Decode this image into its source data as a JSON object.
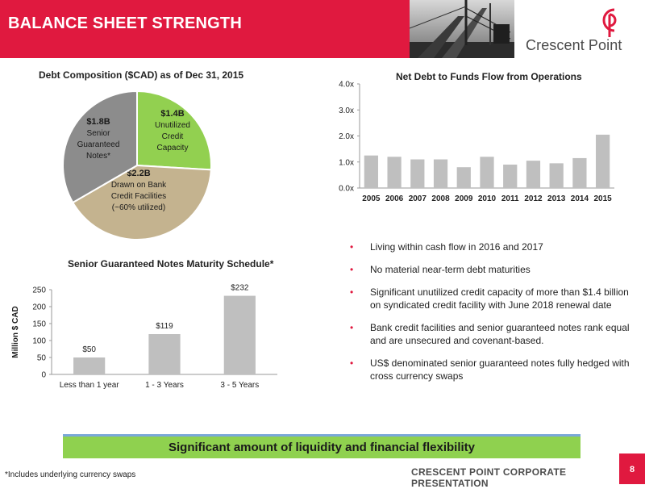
{
  "header": {
    "title": "BALANCE SHEET STRENGTH",
    "brand": "Crescent Point",
    "colors": {
      "accent": "#e0193f"
    }
  },
  "debt_pie": {
    "title": "Debt Composition ($CAD) as of Dec 31, 2015",
    "slices": [
      {
        "amount": "$1.4B",
        "label": [
          "Unutilized",
          "Credit",
          "Capacity"
        ],
        "value": 1.4,
        "color": "#92d050"
      },
      {
        "amount": "$2.2B",
        "label": [
          "Drawn on Bank",
          "Credit Facilities",
          "(~60% utilized)"
        ],
        "value": 2.2,
        "color": "#c4b38f"
      },
      {
        "amount": "$1.8B",
        "label": [
          "Senior",
          "Guaranteed",
          "Notes*"
        ],
        "value": 1.8,
        "color": "#8c8c8c"
      }
    ]
  },
  "net_debt": {
    "title": "Net Debt to Funds Flow from Operations"
  },
  "notes_schedule": {
    "title": "Senior Guaranteed Notes Maturity Schedule*"
  },
  "bullets": [
    "Living within cash flow in 2016 and 2017",
    "No material near-term debt maturities",
    "Significant unutilized credit capacity of more than $1.4 billion on syndicated credit facility with June 2018 renewal date",
    "Bank credit facilities and senior guaranteed notes rank equal and are unsecured and covenant-based.",
    "US$ denominated senior guaranteed notes fully hedged with cross currency swaps"
  ],
  "callout": "Significant amount of liquidity and financial flexibility",
  "footnote": "*Includes underlying currency swaps",
  "footer": {
    "label": "CRESCENT POINT CORPORATE PRESENTATION",
    "page": "8"
  },
  "chart_data": [
    {
      "type": "pie",
      "title": "Debt Composition ($CAD) as of Dec 31, 2015",
      "categories": [
        "Unutilized Credit Capacity",
        "Drawn on Bank Credit Facilities (~60% utilized)",
        "Senior Guaranteed Notes*"
      ],
      "values": [
        1.4,
        2.2,
        1.8
      ],
      "labels": [
        "$1.4B",
        "$2.2B",
        "$1.8B"
      ]
    },
    {
      "type": "bar",
      "title": "Net Debt to Funds Flow from Operations",
      "categories": [
        "2005",
        "2006",
        "2007",
        "2008",
        "2009",
        "2010",
        "2011",
        "2012",
        "2013",
        "2014",
        "2015"
      ],
      "values": [
        1.25,
        1.2,
        1.1,
        1.1,
        0.8,
        1.2,
        0.9,
        1.05,
        0.95,
        1.15,
        2.05
      ],
      "ylim": [
        0,
        4
      ],
      "yticks": [
        "0.0x",
        "1.0x",
        "2.0x",
        "3.0x",
        "4.0x"
      ],
      "ytick_values": [
        0,
        1,
        2,
        3,
        4
      ],
      "grid": false,
      "color": "#bfbfbf"
    },
    {
      "type": "bar",
      "title": "Senior Guaranteed Notes Maturity Schedule*",
      "categories": [
        "Less than 1 year",
        "1 - 3 Years",
        "3 - 5 Years"
      ],
      "values": [
        50,
        119,
        232
      ],
      "data_labels": [
        "$50",
        "$119",
        "$232"
      ],
      "ylabel": "Million $ CAD",
      "ylim": [
        0,
        250
      ],
      "yticks": [
        "0",
        "50",
        "100",
        "150",
        "200",
        "250"
      ],
      "ytick_values": [
        0,
        50,
        100,
        150,
        200,
        250
      ],
      "grid": false,
      "color": "#bfbfbf"
    }
  ]
}
